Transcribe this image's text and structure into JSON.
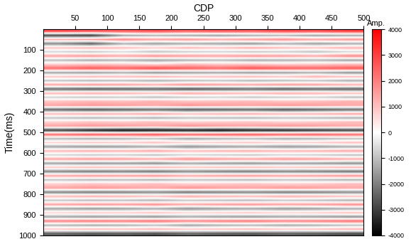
{
  "chart_data": {
    "type": "heatmap",
    "x_label": "CDP",
    "y_label": "Time(ms)",
    "x": [
      25,
      75,
      125,
      175,
      225,
      275,
      325,
      375,
      425,
      475
    ],
    "y": [
      10,
      30,
      50,
      70,
      90,
      110,
      130,
      150,
      170,
      190,
      210,
      230,
      250,
      270,
      290,
      310,
      330,
      350,
      370,
      390,
      410,
      430,
      450,
      470,
      490,
      510,
      530,
      550,
      570,
      590,
      610,
      630,
      650,
      670,
      690,
      710,
      730,
      750,
      770,
      790,
      810,
      830,
      850,
      870,
      890,
      910,
      930,
      950,
      970,
      990
    ],
    "cells": [
      [
        2800,
        2600,
        2500,
        2700,
        2400,
        2600,
        2500,
        2800,
        2700,
        3000
      ],
      [
        -2800,
        -3000,
        -1500,
        -1200,
        -1400,
        -1500,
        -1300,
        -1200,
        -1500,
        -1400
      ],
      [
        1200,
        1500,
        1800,
        1400,
        1600,
        1300,
        1500,
        1700,
        1400,
        1600
      ],
      [
        -1800,
        -2500,
        -1200,
        -1500,
        -1300,
        -1400,
        -1600,
        -1200,
        -1500,
        -1300
      ],
      [
        900,
        1200,
        1000,
        800,
        1100,
        900,
        1300,
        1000,
        900,
        1200
      ],
      [
        -700,
        -900,
        -600,
        -1000,
        -800,
        -700,
        -900,
        -800,
        -1000,
        -700
      ],
      [
        1400,
        1600,
        1300,
        1700,
        1500,
        1400,
        1600,
        1500,
        1300,
        1800
      ],
      [
        -1000,
        -1300,
        -1100,
        -1400,
        -1200,
        -1000,
        -1300,
        -1200,
        -1100,
        -1400
      ],
      [
        700,
        900,
        800,
        600,
        1000,
        800,
        900,
        700,
        800,
        1000
      ],
      [
        2300,
        2600,
        2400,
        2800,
        2500,
        2300,
        2700,
        2500,
        2400,
        2600
      ],
      [
        -1400,
        -1600,
        -1300,
        -1700,
        -1500,
        -1400,
        -1600,
        -1500,
        -1300,
        -1700
      ],
      [
        900,
        1100,
        1000,
        1200,
        900,
        1000,
        1100,
        900,
        1200,
        1000
      ],
      [
        -900,
        -1100,
        -1000,
        -1200,
        -1000,
        -900,
        -1100,
        -1000,
        -900,
        -1200
      ],
      [
        1400,
        1600,
        1500,
        1300,
        1700,
        1500,
        1400,
        1600,
        1500,
        1300
      ],
      [
        -2300,
        -2600,
        -2500,
        -2400,
        -2700,
        -2500,
        -2300,
        -2600,
        -2400,
        -2500
      ],
      [
        1100,
        1300,
        1200,
        1000,
        1400,
        1200,
        1100,
        1300,
        1200,
        1000
      ],
      [
        -700,
        -900,
        -800,
        -1000,
        -800,
        -700,
        -900,
        -800,
        -700,
        -1000
      ],
      [
        900,
        1100,
        1000,
        1200,
        900,
        1000,
        1100,
        900,
        1000,
        1200
      ],
      [
        1400,
        1600,
        1500,
        1300,
        1700,
        1500,
        1400,
        1600,
        1500,
        1300
      ],
      [
        -2400,
        -2700,
        -2500,
        -2300,
        -2600,
        -2500,
        -2400,
        -2700,
        -2500,
        -2300
      ],
      [
        1100,
        1300,
        1200,
        1400,
        1000,
        1200,
        1300,
        1100,
        1200,
        1400
      ],
      [
        -900,
        -1100,
        -1000,
        -1200,
        -900,
        -1000,
        -1100,
        -900,
        -1000,
        -1200
      ],
      [
        700,
        900,
        800,
        1000,
        700,
        800,
        900,
        700,
        800,
        1000
      ],
      [
        1400,
        1600,
        1500,
        1300,
        1700,
        1500,
        1400,
        1600,
        1500,
        1300
      ],
      [
        -3000,
        -3500,
        -3800,
        -3700,
        -3600,
        -3800,
        -3500,
        -3400,
        -3200,
        -3000
      ],
      [
        2300,
        2600,
        2500,
        2700,
        2400,
        2500,
        2600,
        2400,
        2500,
        2300
      ],
      [
        -1100,
        -1300,
        -1200,
        -1000,
        -1400,
        -1200,
        -1100,
        -1300,
        -1200,
        -1000
      ],
      [
        700,
        900,
        800,
        1000,
        700,
        800,
        900,
        700,
        800,
        1000
      ],
      [
        -1400,
        -1600,
        -1500,
        -1300,
        -1700,
        -1500,
        -1400,
        -1600,
        -1500,
        -1300
      ],
      [
        1100,
        1300,
        1200,
        1400,
        1000,
        1200,
        1300,
        1100,
        1200,
        1400
      ],
      [
        -700,
        -900,
        -800,
        -1000,
        -700,
        -800,
        -900,
        -700,
        -800,
        -1000
      ],
      [
        1400,
        1600,
        1500,
        1300,
        1700,
        1500,
        1400,
        1600,
        1500,
        1300
      ],
      [
        -1400,
        -1600,
        -1500,
        -1700,
        -1300,
        -1500,
        -1600,
        -1400,
        -1500,
        -1700
      ],
      [
        900,
        1100,
        1000,
        1200,
        900,
        1000,
        1100,
        900,
        1000,
        1200
      ],
      [
        -1900,
        -2100,
        -2000,
        -2200,
        -1800,
        -2000,
        -2100,
        -1900,
        -2000,
        -2200
      ],
      [
        1400,
        1600,
        1500,
        1700,
        1300,
        1500,
        1600,
        1400,
        1500,
        1700
      ],
      [
        -900,
        -1100,
        -1000,
        -1200,
        -900,
        -1000,
        -1100,
        -900,
        -1000,
        -1200
      ],
      [
        700,
        900,
        800,
        1000,
        700,
        800,
        900,
        700,
        800,
        1000
      ],
      [
        1400,
        1600,
        1500,
        1300,
        1700,
        1500,
        1400,
        1600,
        1500,
        1300
      ],
      [
        -1900,
        -2100,
        -2000,
        -1800,
        -2200,
        -2000,
        -1900,
        -2100,
        -2000,
        -1800
      ],
      [
        1100,
        1300,
        1200,
        1000,
        1400,
        1200,
        1100,
        1300,
        1200,
        1000
      ],
      [
        -900,
        -1100,
        -1000,
        -1200,
        -900,
        -1000,
        -1100,
        -900,
        -1000,
        -1200
      ],
      [
        1400,
        1600,
        1500,
        1700,
        1300,
        1500,
        1600,
        1400,
        1500,
        1700
      ],
      [
        -1400,
        -1600,
        -1500,
        -1300,
        -1700,
        -1500,
        -1400,
        -1600,
        -1500,
        -1300
      ],
      [
        700,
        900,
        800,
        1000,
        700,
        800,
        900,
        700,
        800,
        1000
      ],
      [
        -1400,
        -1600,
        -1500,
        -1700,
        -1300,
        -1500,
        -1600,
        -1400,
        -1500,
        -1700
      ],
      [
        1900,
        2100,
        2000,
        2200,
        1800,
        2000,
        2100,
        1900,
        2000,
        2200
      ],
      [
        -1100,
        -1300,
        -1200,
        -1000,
        -1400,
        -1200,
        -1100,
        -1300,
        -1200,
        -1000
      ],
      [
        900,
        1100,
        1000,
        1200,
        900,
        1000,
        1100,
        900,
        1000,
        1200
      ],
      [
        -2400,
        -2600,
        -2500,
        -2700,
        -2300,
        -2500,
        -2600,
        -2400,
        -2500,
        -2700
      ]
    ],
    "xlim": [
      0,
      500
    ],
    "ylim": [
      1000,
      0
    ],
    "xticks": [
      50,
      100,
      150,
      200,
      250,
      300,
      350,
      400,
      450,
      500
    ],
    "yticks": [
      100,
      200,
      300,
      400,
      500,
      600,
      700,
      800,
      900,
      1000
    ],
    "colors": [
      "#000000",
      "#ffffff",
      "#ff0000"
    ],
    "colorbar": {
      "label": "Amp.",
      "range": [
        -4000,
        4000
      ],
      "ticks": [
        -4000,
        -3000,
        -2000,
        -1000,
        0,
        1000,
        2000,
        3000,
        4000
      ]
    }
  }
}
